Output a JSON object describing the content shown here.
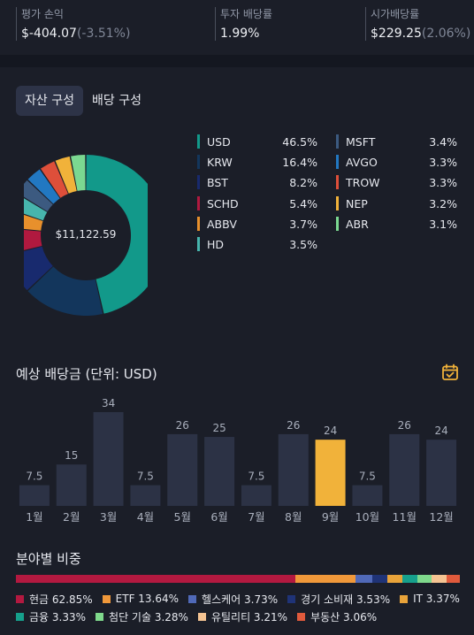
{
  "stats": {
    "pnl": {
      "label": "평가 손익",
      "value": "$-404.07",
      "sub": "(-3.51%)"
    },
    "yield": {
      "label": "투자 배당률",
      "value": "1.99%"
    },
    "market_yield": {
      "label": "시가배당률",
      "value": "$229.25",
      "sub": "(2.06%)"
    }
  },
  "tabs": [
    {
      "label": "자산 구성",
      "active": true
    },
    {
      "label": "배당 구성",
      "active": false
    }
  ],
  "donut": {
    "center": "$11,122.59",
    "items": [
      {
        "name": "USD",
        "pct": "46.5%",
        "value": 46.5,
        "color": "#12998a"
      },
      {
        "name": "KRW",
        "pct": "16.4%",
        "value": 16.4,
        "color": "#13365c"
      },
      {
        "name": "BST",
        "pct": "8.2%",
        "value": 8.2,
        "color": "#182a6e"
      },
      {
        "name": "SCHD",
        "pct": "5.4%",
        "value": 5.4,
        "color": "#b0193f"
      },
      {
        "name": "ABBV",
        "pct": "3.7%",
        "value": 3.7,
        "color": "#e8902c"
      },
      {
        "name": "HD",
        "pct": "3.5%",
        "value": 3.5,
        "color": "#47b5ad"
      },
      {
        "name": "MSFT",
        "pct": "3.4%",
        "value": 3.4,
        "color": "#3c5a80"
      },
      {
        "name": "AVGO",
        "pct": "3.3%",
        "value": 3.3,
        "color": "#2278c2"
      },
      {
        "name": "TROW",
        "pct": "3.3%",
        "value": 3.3,
        "color": "#de4f3a"
      },
      {
        "name": "NEP",
        "pct": "3.2%",
        "value": 3.2,
        "color": "#f1b23a"
      },
      {
        "name": "ABR",
        "pct": "3.1%",
        "value": 3.1,
        "color": "#7bd891"
      }
    ]
  },
  "dividends": {
    "title": "예상 배당금 (단위: USD)",
    "icon": "calendar-check-icon"
  },
  "chart_data": {
    "type": "bar",
    "title": "예상 배당금 (단위: USD)",
    "categories": [
      "1월",
      "2월",
      "3월",
      "4월",
      "5월",
      "6월",
      "7월",
      "8월",
      "9월",
      "10월",
      "11월",
      "12월"
    ],
    "values": [
      7.5,
      15,
      34,
      7.5,
      26,
      25,
      7.5,
      26,
      24,
      7.5,
      26,
      24
    ],
    "value_labels": [
      "7.5",
      "15",
      "34",
      "7.5",
      "26",
      "25",
      "7.5",
      "26",
      "24",
      "7.5",
      "26",
      "24"
    ],
    "highlight_index": 8,
    "bar_color": "#2c3245",
    "highlight_color": "#f1b23a",
    "ylim": [
      0,
      34
    ],
    "grid": false
  },
  "sectors": {
    "title": "분야별 비중",
    "items": [
      {
        "name": "현금",
        "pct": "62.85%",
        "value": 62.85,
        "color": "#b31940"
      },
      {
        "name": "ETF",
        "pct": "13.64%",
        "value": 13.64,
        "color": "#f0983a"
      },
      {
        "name": "헬스케어",
        "pct": "3.73%",
        "value": 3.73,
        "color": "#5069b8"
      },
      {
        "name": "경기 소비재",
        "pct": "3.53%",
        "value": 3.53,
        "color": "#1f3377"
      },
      {
        "name": "IT",
        "pct": "3.37%",
        "value": 3.37,
        "color": "#e8a33a"
      },
      {
        "name": "금융",
        "pct": "3.33%",
        "value": 3.33,
        "color": "#16a08c"
      },
      {
        "name": "첨단 기술",
        "pct": "3.28%",
        "value": 3.28,
        "color": "#7fd98c"
      },
      {
        "name": "유틸리티",
        "pct": "3.21%",
        "value": 3.21,
        "color": "#f4c392"
      },
      {
        "name": "부동산",
        "pct": "3.06%",
        "value": 3.06,
        "color": "#e05a3c"
      }
    ]
  }
}
